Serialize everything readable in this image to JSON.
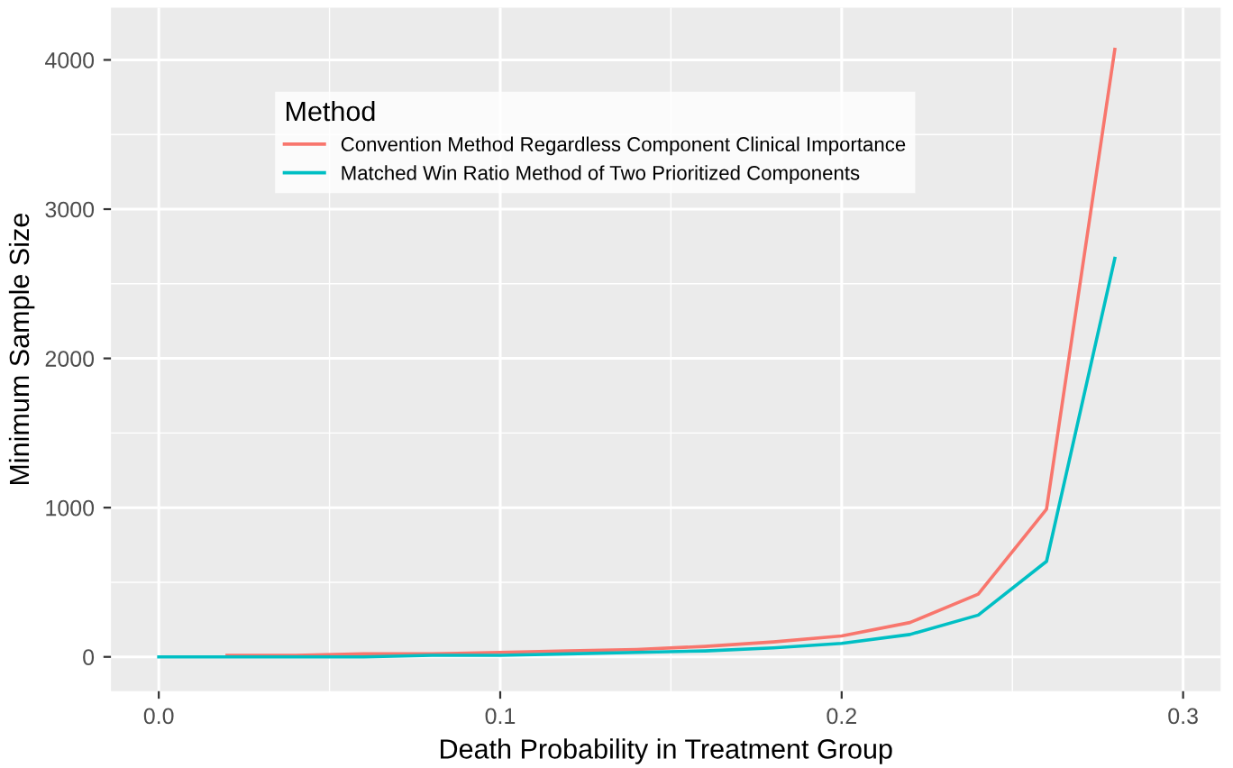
{
  "chart_data": {
    "type": "line",
    "xlabel": "Death Probability in Treatment Group",
    "ylabel": "Minimum Sample Size",
    "legend_title": "Method",
    "x": [
      0,
      0.02,
      0.04,
      0.06,
      0.08,
      0.1,
      0.12,
      0.14,
      0.16,
      0.18,
      0.2,
      0.22,
      0.24,
      0.26,
      0.28
    ],
    "series": [
      {
        "name": "Convention Method Regardless Component Clinical Importance",
        "color": "#f8766d",
        "values": [
          null,
          10,
          10,
          20,
          20,
          30,
          40,
          50,
          70,
          100,
          140,
          230,
          420,
          990,
          4070
        ]
      },
      {
        "name": "Matched Win Ratio Method of Two Prioritized Components",
        "color": "#00bfc4",
        "values": [
          0,
          0,
          0,
          0,
          10,
          10,
          20,
          30,
          40,
          60,
          90,
          150,
          280,
          640,
          2670
        ]
      }
    ],
    "xlim": [
      -0.014,
      0.311
    ],
    "ylim": [
      -230,
      4350
    ],
    "xticks": [
      {
        "value": 0,
        "label": "0.0"
      },
      0.1,
      0.2,
      0.3
    ],
    "yticks": [
      0,
      1000,
      2000,
      3000,
      4000
    ],
    "grid": true,
    "legend": "top left",
    "marker": "none",
    "line_style": "solid"
  }
}
